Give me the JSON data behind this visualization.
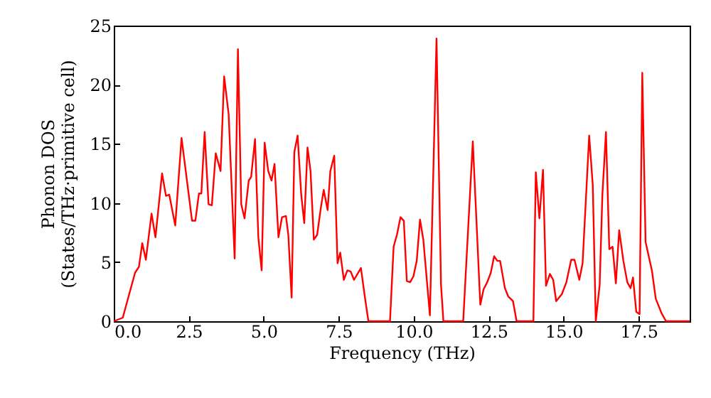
{
  "chart_data": {
    "type": "line",
    "xlabel": "Frequency (THz)",
    "ylabel": "Phonon DOS\n(States/THz·primitive cell)",
    "xlim": [
      0,
      19.2
    ],
    "ylim": [
      0,
      25
    ],
    "xticks": [
      {
        "value": 0,
        "label": "0.0"
      },
      {
        "value": 2.5,
        "label": "2.5"
      },
      {
        "value": 5,
        "label": "5.0"
      },
      {
        "value": 7.5,
        "label": "7.5"
      },
      {
        "value": 10,
        "label": "10.0"
      },
      {
        "value": 12.5,
        "label": "12.5"
      },
      {
        "value": 15,
        "label": "15.0"
      },
      {
        "value": 17.5,
        "label": "17.5"
      }
    ],
    "yticks": [
      0,
      5,
      10,
      15,
      20,
      25
    ],
    "grid": false,
    "marker": "none",
    "line_style": "solid",
    "x": [
      0,
      0.3,
      0.71,
      0.84,
      0.95,
      1.07,
      1.26,
      1.39,
      1.61,
      1.74,
      1.85,
      2.05,
      2.26,
      2.61,
      2.72,
      2.84,
      2.92,
      3.03,
      3.16,
      3.27,
      3.4,
      3.56,
      3.68,
      3.83,
      4.03,
      4.14,
      4.25,
      4.36,
      4.5,
      4.58,
      4.71,
      4.82,
      4.93,
      5.03,
      5.15,
      5.26,
      5.36,
      5.49,
      5.61,
      5.74,
      5.82,
      5.93,
      6.02,
      6.13,
      6.25,
      6.35,
      6.46,
      6.56,
      6.67,
      6.78,
      6.91,
      7.0,
      7.13,
      7.22,
      7.35,
      7.46,
      7.55,
      7.67,
      7.79,
      7.9,
      8.01,
      8.24,
      8.38,
      8.49,
      9.21,
      9.33,
      9.44,
      9.56,
      9.67,
      9.77,
      9.88,
      9.99,
      10.1,
      10.21,
      10.32,
      10.54,
      10.76,
      10.91,
      10.99,
      11.65,
      11.97,
      12.22,
      12.33,
      12.45,
      12.57,
      12.68,
      12.79,
      12.88,
      13.04,
      13.15,
      13.31,
      13.43,
      13.99,
      14.07,
      14.19,
      14.31,
      14.41,
      14.54,
      14.65,
      14.75,
      14.94,
      15.09,
      15.25,
      15.36,
      15.52,
      15.63,
      15.85,
      15.97,
      16.07,
      16.2,
      16.29,
      16.41,
      16.52,
      16.63,
      16.74,
      16.85,
      16.99,
      17.12,
      17.23,
      17.31,
      17.42,
      17.53,
      17.62,
      17.73,
      17.94,
      18.07,
      18.26,
      18.41,
      19.2
    ],
    "series": [
      {
        "color": "#ff0000",
        "values": [
          0,
          0.3,
          4.1,
          4.6,
          6.6,
          5.2,
          9.1,
          7.1,
          12.5,
          10.6,
          10.7,
          8.1,
          15.5,
          8.5,
          8.5,
          10.8,
          10.8,
          16.0,
          9.9,
          9.8,
          14.2,
          12.7,
          20.7,
          17.5,
          5.3,
          23.0,
          9.9,
          8.7,
          11.9,
          12.2,
          15.4,
          7.1,
          4.3,
          15.1,
          12.7,
          11.9,
          13.3,
          7.1,
          8.8,
          8.9,
          7.3,
          2.0,
          14.3,
          15.7,
          10.7,
          8.3,
          14.7,
          12.7,
          6.9,
          7.3,
          9.7,
          11.1,
          9.4,
          12.7,
          14.0,
          4.9,
          5.8,
          3.5,
          4.3,
          4.2,
          3.5,
          4.5,
          1.9,
          0,
          0,
          6.3,
          7.3,
          8.8,
          8.5,
          3.4,
          3.3,
          3.8,
          5.1,
          8.6,
          6.9,
          0.5,
          23.9,
          3.1,
          0,
          0,
          15.2,
          1.4,
          2.7,
          3.3,
          4.1,
          5.5,
          5.1,
          5.1,
          2.8,
          2.1,
          1.7,
          0,
          0,
          12.6,
          8.7,
          12.8,
          3.0,
          4.0,
          3.5,
          1.7,
          2.3,
          3.3,
          5.2,
          5.2,
          3.5,
          4.9,
          15.7,
          11.5,
          0,
          3.1,
          10.7,
          16.0,
          6.1,
          6.3,
          3.2,
          7.7,
          5.1,
          3.3,
          2.8,
          3.7,
          0.8,
          0.6,
          21.0,
          6.7,
          4.3,
          1.9,
          0.7,
          0,
          0
        ]
      }
    ]
  }
}
